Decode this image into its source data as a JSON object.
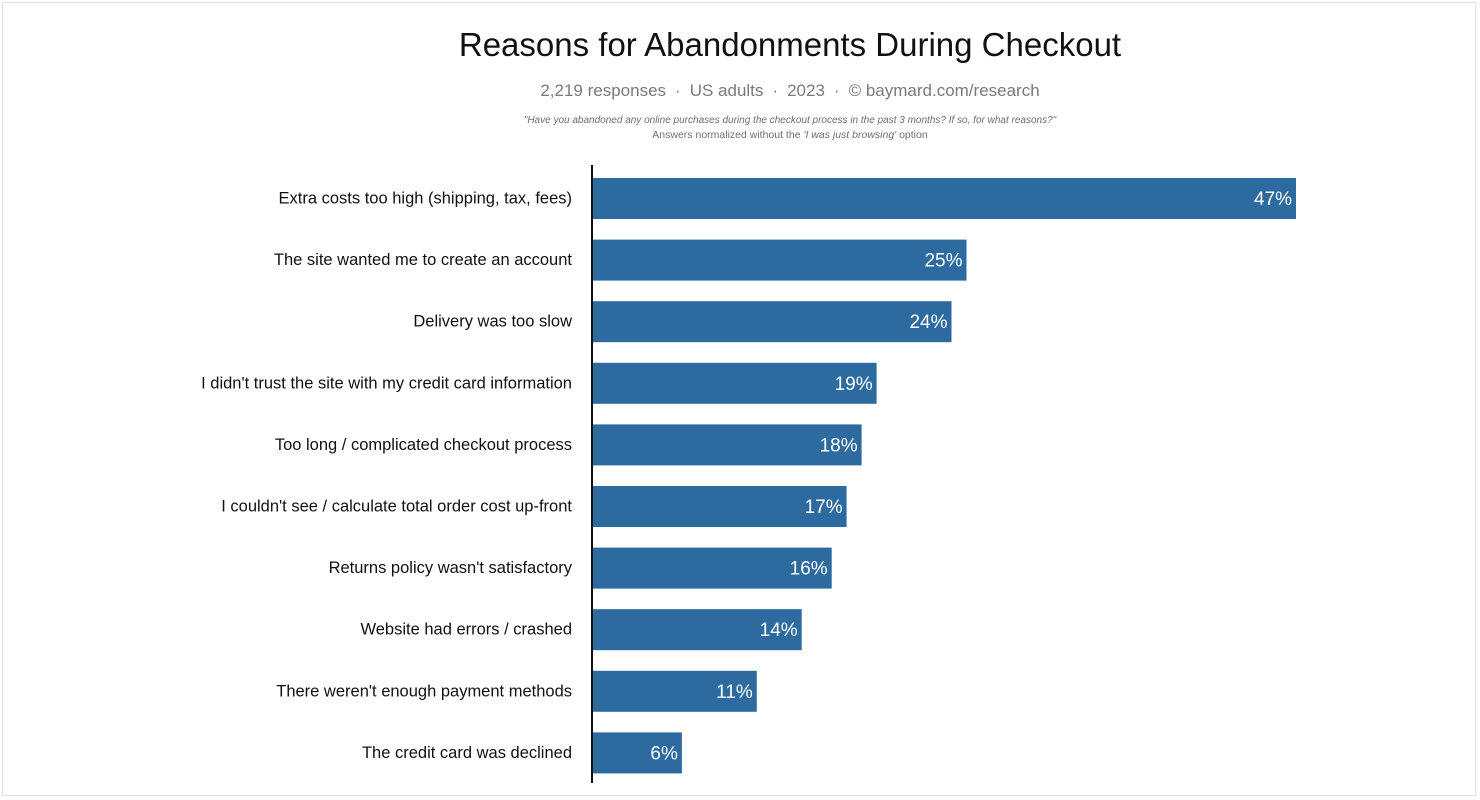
{
  "header": {
    "title": "Reasons for Abandonments During Checkout",
    "meta": {
      "responses": "2,219 responses",
      "population": "US adults",
      "year": "2023",
      "source": "© baymard.com/research",
      "separator": "·"
    },
    "question": "\"Have you abandoned any online purchases during the checkout process in the past 3 months? If so, for what reasons?\"",
    "note_prefix": "Answers normalized without the ",
    "note_option": "'I was just browsing'",
    "note_suffix": " option"
  },
  "chart_data": {
    "type": "bar",
    "orientation": "horizontal",
    "title": "Reasons for Abandonments During Checkout",
    "xlabel": "",
    "ylabel": "",
    "grid": false,
    "legend": "none",
    "bar_color": "#2d6a9f",
    "categories": [
      "Extra costs too high (shipping, tax, fees)",
      "The site wanted me to create an account",
      "Delivery was too slow",
      "I didn't trust the site with my credit card information",
      "Too long / complicated checkout process",
      "I couldn't see / calculate total order cost up-front",
      "Returns policy wasn't satisfactory",
      "Website had errors / crashed",
      "There weren't enough payment methods",
      "The credit card was declined"
    ],
    "values": [
      47,
      25,
      24,
      19,
      18,
      17,
      16,
      14,
      11,
      6
    ],
    "value_labels": [
      "47%",
      "25%",
      "24%",
      "19%",
      "18%",
      "17%",
      "16%",
      "14%",
      "11%",
      "6%"
    ]
  }
}
